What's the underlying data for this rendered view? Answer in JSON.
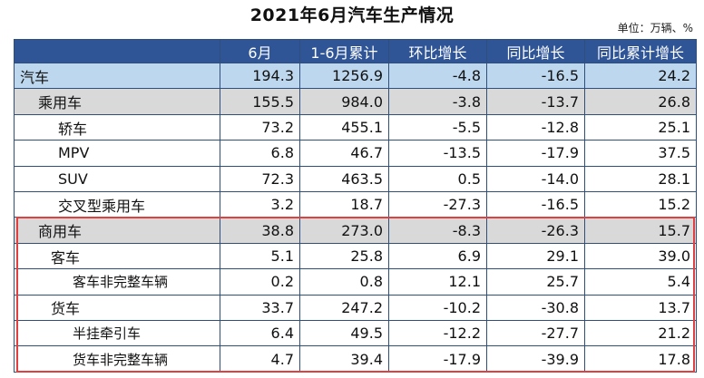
{
  "title": "2021年6月汽车生产情况",
  "unit": "单位：万辆、%",
  "headers": [
    "",
    "6月",
    "1-6月累计",
    "环比增长",
    "同比增长",
    "同比累计增长"
  ],
  "rows": [
    {
      "label": "汽车",
      "level": 0,
      "values": [
        "194.3",
        "1256.9",
        "-4.8",
        "-16.5",
        "24.2"
      ]
    },
    {
      "label": "乘用车",
      "level": 1,
      "values": [
        "155.5",
        "984.0",
        "-3.8",
        "-13.7",
        "26.8"
      ]
    },
    {
      "label": "轿车",
      "level": 2,
      "values": [
        "73.2",
        "455.1",
        "-5.5",
        "-12.8",
        "25.1"
      ]
    },
    {
      "label": "MPV",
      "level": 2,
      "values": [
        "6.8",
        "46.7",
        "-13.5",
        "-17.9",
        "37.5"
      ]
    },
    {
      "label": "SUV",
      "level": 2,
      "values": [
        "72.3",
        "463.5",
        "0.5",
        "-14.0",
        "28.1"
      ]
    },
    {
      "label": "交叉型乘用车",
      "level": 2,
      "values": [
        "3.2",
        "18.7",
        "-27.3",
        "-16.5",
        "15.2"
      ]
    },
    {
      "label": "商用车",
      "level": 1,
      "values": [
        "38.8",
        "273.0",
        "-8.3",
        "-26.3",
        "15.7"
      ]
    },
    {
      "label": "客车",
      "level": 2,
      "values": [
        "5.1",
        "25.8",
        "6.9",
        "29.1",
        "39.0"
      ]
    },
    {
      "label": "客车非完整车辆",
      "level": 3,
      "values": [
        "0.2",
        "0.8",
        "12.1",
        "25.7",
        "5.4"
      ]
    },
    {
      "label": "货车",
      "level": 2,
      "values": [
        "33.7",
        "247.2",
        "-10.2",
        "-30.8",
        "13.7"
      ]
    },
    {
      "label": "半挂牵引车",
      "level": 3,
      "values": [
        "6.4",
        "49.5",
        "-12.2",
        "-27.7",
        "21.2"
      ]
    },
    {
      "label": "货车非完整车辆",
      "level": 3,
      "values": [
        "4.7",
        "39.4",
        "-17.9",
        "-39.9",
        "17.8"
      ]
    }
  ],
  "colors": {
    "header": "#2f5597",
    "total_row": "#bdd7ee",
    "category_row": "#d9d9d9",
    "highlight_box": "#e04040"
  }
}
